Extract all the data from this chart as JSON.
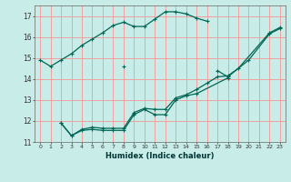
{
  "xlabel": "Humidex (Indice chaleur)",
  "bg_color": "#c8ece8",
  "line_color": "#006655",
  "grid_color": "#f0a0a0",
  "xlim": [
    -0.5,
    23.5
  ],
  "ylim": [
    11,
    17.5
  ],
  "yticks": [
    11,
    12,
    13,
    14,
    15,
    16,
    17
  ],
  "xticks": [
    0,
    1,
    2,
    3,
    4,
    5,
    6,
    7,
    8,
    9,
    10,
    11,
    12,
    13,
    14,
    15,
    16,
    17,
    18,
    19,
    20,
    21,
    22,
    23
  ],
  "series": [
    {
      "x": [
        0,
        1,
        2,
        3,
        4,
        5,
        6,
        7,
        8,
        9,
        10,
        11,
        12,
        13,
        14,
        15,
        16
      ],
      "y": [
        14.9,
        14.6,
        14.9,
        15.2,
        15.6,
        15.9,
        16.2,
        16.55,
        16.7,
        16.5,
        16.5,
        16.85,
        17.2,
        17.2,
        17.1,
        16.9,
        16.75
      ]
    },
    {
      "x": [
        8,
        9,
        17,
        18,
        20,
        22,
        23
      ],
      "y": [
        14.6,
        null,
        14.4,
        14.1,
        14.9,
        16.15,
        16.4
      ]
    },
    {
      "x": [
        2,
        3,
        4,
        5,
        6,
        7,
        8,
        9,
        10,
        11,
        12,
        13,
        14,
        15,
        18
      ],
      "y": [
        11.9,
        11.3,
        11.55,
        11.6,
        11.55,
        11.55,
        11.55,
        12.3,
        12.55,
        12.3,
        12.3,
        13.0,
        13.2,
        13.3,
        14.05
      ]
    },
    {
      "x": [
        2,
        3,
        4,
        5,
        6,
        7,
        8,
        9,
        10,
        11,
        12,
        13,
        14,
        15,
        16,
        17,
        18,
        19,
        22,
        23
      ],
      "y": [
        11.9,
        11.3,
        11.6,
        11.7,
        11.65,
        11.65,
        11.65,
        12.4,
        12.6,
        12.55,
        12.55,
        13.1,
        13.25,
        13.5,
        13.8,
        14.1,
        14.15,
        14.5,
        16.2,
        16.45
      ]
    }
  ]
}
